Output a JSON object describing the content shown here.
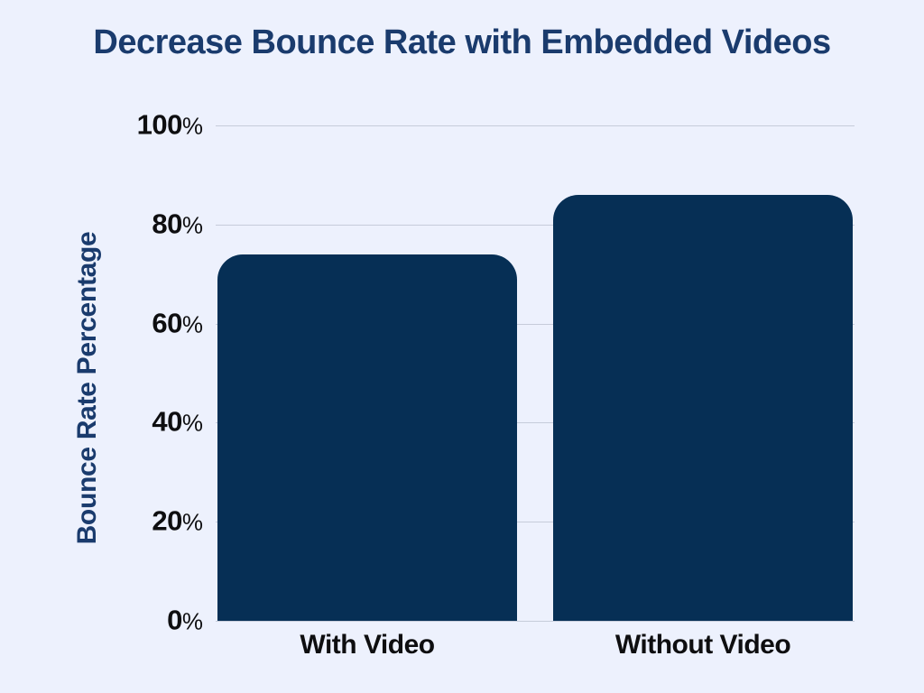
{
  "page": {
    "background_color": "#edf1fd"
  },
  "title": {
    "text": "Decrease Bounce Rate with Embedded Videos",
    "color": "#1a3b6d"
  },
  "axis": {
    "y_title": "Bounce Rate Percentage",
    "tick_suffix": "%"
  },
  "colors": {
    "bar": "#062f55",
    "gridline": "#c6ccda",
    "tick_text": "#0e0e10",
    "category_text": "#0e0e10",
    "title_text": "#1a3b6d"
  },
  "chart_data": {
    "type": "bar",
    "categories": [
      "With Video",
      "Without Video"
    ],
    "values": [
      74,
      86
    ],
    "title": "Decrease Bounce Rate with Embedded Videos",
    "xlabel": "",
    "ylabel": "Bounce Rate Percentage",
    "ylim": [
      0,
      100
    ],
    "yticks": [
      0,
      20,
      40,
      60,
      80,
      100
    ],
    "ytick_suffix": "%",
    "grid": true,
    "legend": false,
    "bar_color": "#062f55"
  }
}
